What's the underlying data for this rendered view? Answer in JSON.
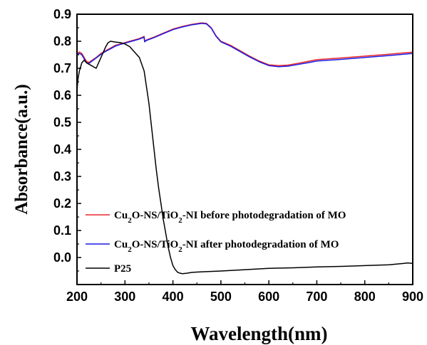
{
  "chart_data": {
    "type": "line",
    "title": "",
    "xlabel": "Wavelength(nm)",
    "ylabel": "Absorbance(a.u.)",
    "xlim": [
      200,
      900
    ],
    "ylim": [
      -0.1,
      0.9
    ],
    "xticks": [
      200,
      300,
      400,
      500,
      600,
      700,
      800,
      900
    ],
    "yticks": [
      0.0,
      0.1,
      0.2,
      0.3,
      0.4,
      0.5,
      0.6,
      0.7,
      0.8,
      0.9
    ],
    "ytick_labels": [
      "0.0",
      "0.1",
      "0.2",
      "0.3",
      "0.4",
      "0.5",
      "0.6",
      "0.7",
      "0.8",
      "0.9"
    ],
    "grid": false,
    "legend_position": "bottom-left",
    "series": [
      {
        "name": "Cu2O-NS/TiO2-NI before photodegradation of MO",
        "legend_parts": [
          [
            "Cu",
            false
          ],
          [
            "2",
            true
          ],
          [
            "O-NS/TiO",
            false
          ],
          [
            "2",
            true
          ],
          [
            "-NI before photodegradation of MO",
            false
          ]
        ],
        "color": "#e8262b",
        "x": [
          200,
          205,
          210,
          215,
          220,
          225,
          230,
          240,
          250,
          260,
          270,
          280,
          290,
          300,
          310,
          320,
          330,
          340,
          341,
          345,
          360,
          380,
          400,
          420,
          440,
          460,
          470,
          480,
          490,
          500,
          520,
          540,
          560,
          580,
          600,
          620,
          640,
          660,
          680,
          700,
          750,
          800,
          850,
          900
        ],
        "y": [
          0.755,
          0.76,
          0.755,
          0.74,
          0.725,
          0.722,
          0.728,
          0.74,
          0.755,
          0.765,
          0.775,
          0.785,
          0.79,
          0.795,
          0.8,
          0.805,
          0.81,
          0.818,
          0.8,
          0.805,
          0.815,
          0.83,
          0.845,
          0.855,
          0.863,
          0.868,
          0.866,
          0.85,
          0.82,
          0.8,
          0.785,
          0.765,
          0.745,
          0.727,
          0.713,
          0.71,
          0.712,
          0.718,
          0.725,
          0.732,
          0.738,
          0.745,
          0.752,
          0.76
        ]
      },
      {
        "name": "Cu2O-NS/TiO2-NI after photodegradation of MO",
        "legend_parts": [
          [
            "Cu",
            false
          ],
          [
            "2",
            true
          ],
          [
            "O-NS/TiO",
            false
          ],
          [
            "2",
            true
          ],
          [
            "-NI after photodegradation of MO",
            false
          ]
        ],
        "color": "#1a1ae6",
        "x": [
          200,
          205,
          210,
          215,
          220,
          225,
          230,
          240,
          250,
          260,
          270,
          280,
          290,
          300,
          310,
          320,
          330,
          340,
          341,
          345,
          360,
          380,
          400,
          420,
          440,
          460,
          470,
          480,
          490,
          500,
          520,
          540,
          560,
          580,
          600,
          620,
          640,
          660,
          680,
          700,
          750,
          800,
          850,
          900
        ],
        "y": [
          0.75,
          0.755,
          0.75,
          0.735,
          0.72,
          0.718,
          0.725,
          0.738,
          0.752,
          0.763,
          0.772,
          0.782,
          0.788,
          0.793,
          0.798,
          0.803,
          0.808,
          0.815,
          0.798,
          0.803,
          0.813,
          0.828,
          0.843,
          0.853,
          0.861,
          0.866,
          0.864,
          0.848,
          0.818,
          0.798,
          0.782,
          0.762,
          0.742,
          0.724,
          0.71,
          0.706,
          0.708,
          0.714,
          0.72,
          0.727,
          0.733,
          0.74,
          0.747,
          0.755
        ]
      },
      {
        "name": "P25",
        "legend_parts": [
          [
            "P25",
            false
          ]
        ],
        "color": "#000000",
        "x": [
          200,
          202,
          205,
          210,
          215,
          220,
          225,
          230,
          235,
          240,
          245,
          250,
          255,
          260,
          265,
          270,
          280,
          290,
          300,
          310,
          320,
          330,
          340,
          345,
          350,
          355,
          360,
          365,
          370,
          375,
          380,
          385,
          390,
          395,
          400,
          405,
          410,
          415,
          420,
          430,
          440,
          460,
          500,
          550,
          600,
          650,
          700,
          750,
          800,
          850,
          880,
          890,
          900
        ],
        "y": [
          0.62,
          0.66,
          0.69,
          0.72,
          0.73,
          0.72,
          0.715,
          0.71,
          0.705,
          0.7,
          0.72,
          0.74,
          0.76,
          0.78,
          0.795,
          0.8,
          0.797,
          0.795,
          0.79,
          0.78,
          0.76,
          0.74,
          0.69,
          0.63,
          0.57,
          0.49,
          0.41,
          0.33,
          0.26,
          0.2,
          0.14,
          0.09,
          0.04,
          0.0,
          -0.03,
          -0.045,
          -0.055,
          -0.058,
          -0.06,
          -0.058,
          -0.055,
          -0.053,
          -0.05,
          -0.045,
          -0.04,
          -0.038,
          -0.035,
          -0.033,
          -0.03,
          -0.027,
          -0.022,
          -0.02,
          -0.022
        ]
      }
    ]
  }
}
